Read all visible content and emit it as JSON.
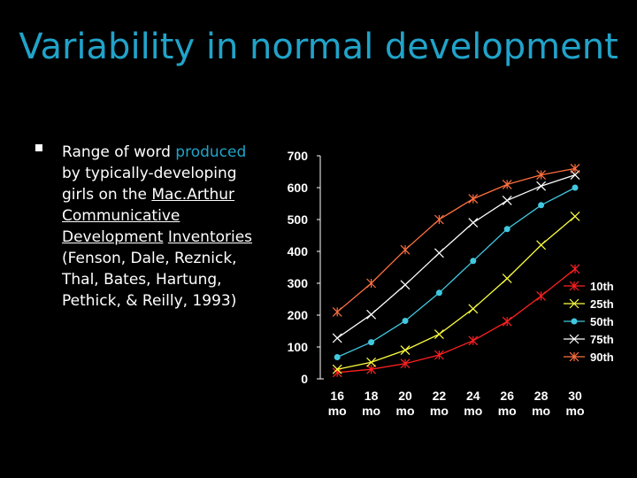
{
  "slide": {
    "title": "Variability in normal development",
    "bullet": {
      "pre": "Range of word",
      "highlight": "produced",
      "mid": "by typically-developing girls on the",
      "link1": "Mac.Arthur",
      "link2": "Communicative",
      "link3": "Development",
      "link4": "Inventories",
      "post": "(Fenson, Dale, Reznick, Thal, Bates, Hartung, Pethick, & Reilly, 1993)"
    }
  },
  "chart_data": {
    "type": "line",
    "title": "",
    "xlabel": "",
    "ylabel": "",
    "ylim": [
      0,
      700
    ],
    "yticks": [
      "700",
      "600",
      "500",
      "400",
      "300",
      "200",
      "100",
      "0"
    ],
    "categories": [
      "16",
      "18",
      "20",
      "22",
      "24",
      "26",
      "28",
      "30"
    ],
    "category_unit": "mo",
    "legend_position": "right",
    "series": [
      {
        "name": "10th",
        "color": "#ff2020",
        "marker": "star",
        "values": [
          20,
          30,
          48,
          75,
          120,
          180,
          260,
          345
        ]
      },
      {
        "name": "25th",
        "color": "#ffff40",
        "marker": "x",
        "values": [
          30,
          52,
          90,
          140,
          220,
          315,
          420,
          510
        ]
      },
      {
        "name": "50th",
        "color": "#40c8e0",
        "marker": "circle",
        "values": [
          68,
          115,
          182,
          270,
          370,
          470,
          545,
          600
        ]
      },
      {
        "name": "75th",
        "color": "#ffffff",
        "marker": "x",
        "values": [
          128,
          202,
          295,
          395,
          490,
          560,
          605,
          640
        ]
      },
      {
        "name": "90th",
        "color": "#ff7040",
        "marker": "star",
        "values": [
          210,
          300,
          405,
          500,
          565,
          610,
          640,
          660
        ]
      }
    ]
  }
}
